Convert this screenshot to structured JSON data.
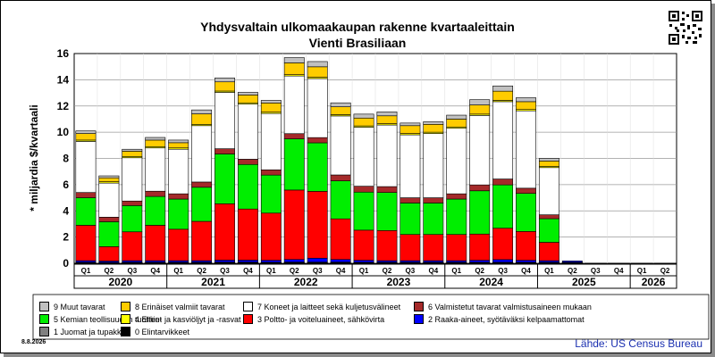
{
  "title": "Yhdysvaltain ulkomaakaupan rakenne kvartaaleittain",
  "subtitle": "Vienti Brasiliaan",
  "ylabel": "* miljardia $/kvartaali",
  "date": "8.8.2026",
  "source": "Lähde: US Census Bureau",
  "qr_icon": "qr-code-icon",
  "chart_data": {
    "type": "bar",
    "stacked": true,
    "ylim": [
      0,
      16
    ],
    "yticks": [
      0,
      2,
      4,
      6,
      8,
      10,
      12,
      14,
      16
    ],
    "grid": true,
    "categories": [
      "Q1",
      "Q2",
      "Q3",
      "Q4",
      "Q1",
      "Q2",
      "Q3",
      "Q4",
      "Q1",
      "Q2",
      "Q3",
      "Q4",
      "Q1",
      "Q2",
      "Q3",
      "Q4",
      "Q1",
      "Q2",
      "Q3",
      "Q4",
      "Q1",
      "Q2",
      "Q3",
      "Q4",
      "Q1",
      "Q2"
    ],
    "years": [
      {
        "label": "2020",
        "start": 0,
        "count": 4
      },
      {
        "label": "2021",
        "start": 4,
        "count": 4
      },
      {
        "label": "2022",
        "start": 8,
        "count": 4
      },
      {
        "label": "2023",
        "start": 12,
        "count": 4
      },
      {
        "label": "2024",
        "start": 16,
        "count": 4
      },
      {
        "label": "2025",
        "start": 20,
        "count": 4
      },
      {
        "label": "2026",
        "start": 24,
        "count": 2
      }
    ],
    "series": [
      {
        "name": "0 Elintarvikkeet",
        "color": "#000000",
        "values": [
          0.05,
          0.04,
          0.05,
          0.05,
          0.05,
          0.05,
          0.06,
          0.06,
          0.05,
          0.06,
          0.06,
          0.06,
          0.05,
          0.05,
          0.05,
          0.05,
          0.05,
          0.05,
          0.05,
          0.05,
          0.05,
          0.05,
          0,
          0,
          0,
          0
        ]
      },
      {
        "name": "1 Juomat ja tupakka",
        "color": "#808080",
        "values": [
          0.03,
          0.03,
          0.03,
          0.03,
          0.03,
          0.03,
          0.03,
          0.03,
          0.03,
          0.03,
          0.03,
          0.03,
          0.03,
          0.03,
          0.03,
          0.03,
          0.03,
          0.03,
          0.03,
          0.03,
          0.03,
          0.03,
          0,
          0,
          0,
          0
        ]
      },
      {
        "name": "2 Raaka-aineet, syötäväksi kelpaamattomat",
        "color": "#0000ff",
        "values": [
          0.12,
          0.1,
          0.12,
          0.12,
          0.12,
          0.12,
          0.15,
          0.15,
          0.15,
          0.2,
          0.3,
          0.2,
          0.15,
          0.12,
          0.12,
          0.12,
          0.12,
          0.15,
          0.2,
          0.15,
          0.12,
          0.1,
          0,
          0,
          0,
          0
        ]
      },
      {
        "name": "3 Poltto- ja voiteluaineet, sähkövirta",
        "color": "#ff0000",
        "values": [
          2.7,
          1.1,
          2.2,
          2.7,
          2.4,
          3.0,
          4.3,
          3.9,
          3.6,
          5.3,
          5.1,
          3.1,
          2.3,
          2.3,
          2.0,
          2.0,
          2.0,
          2.0,
          2.4,
          2.2,
          1.4,
          0,
          0,
          0,
          0,
          0
        ]
      },
      {
        "name": "5 Kemian teollisuuden tuotteet",
        "color": "#00ee00",
        "values": [
          2.1,
          1.9,
          2.0,
          2.2,
          2.3,
          2.6,
          3.8,
          3.4,
          2.9,
          3.9,
          3.7,
          2.9,
          2.9,
          2.9,
          2.4,
          2.4,
          2.7,
          3.3,
          3.3,
          2.9,
          1.8,
          0,
          0,
          0,
          0,
          0
        ]
      },
      {
        "name": "6 Valmistetut tavarat valmistusaineen mukaan",
        "color": "#a52a2a",
        "values": [
          0.4,
          0.35,
          0.35,
          0.4,
          0.4,
          0.4,
          0.4,
          0.4,
          0.4,
          0.4,
          0.4,
          0.45,
          0.45,
          0.45,
          0.4,
          0.4,
          0.4,
          0.45,
          0.45,
          0.4,
          0.3,
          0,
          0,
          0,
          0,
          0
        ]
      },
      {
        "name": "7 Koneet ja laitteet sekä kuljetusvälineet",
        "color": "#ffffff",
        "values": [
          3.9,
          2.6,
          3.3,
          3.3,
          3.4,
          4.3,
          4.3,
          4.2,
          4.3,
          4.4,
          4.5,
          4.5,
          4.5,
          4.7,
          4.8,
          4.9,
          5.0,
          5.3,
          5.9,
          5.9,
          3.6,
          0,
          0,
          0,
          0,
          0
        ]
      },
      {
        "name": "4 Eläin- ja kasviöljyt ja -rasvat",
        "color": "#ffff00",
        "values": [
          0.1,
          0.1,
          0.1,
          0.1,
          0.1,
          0.1,
          0.1,
          0.1,
          0.1,
          0.1,
          0.1,
          0.1,
          0.1,
          0.1,
          0.1,
          0.1,
          0.1,
          0.1,
          0.1,
          0.1,
          0.1,
          0,
          0,
          0,
          0,
          0
        ]
      },
      {
        "name": "8 Erinäiset valmiit tavarat",
        "color": "#ffcc00",
        "values": [
          0.5,
          0.3,
          0.4,
          0.5,
          0.4,
          0.8,
          0.7,
          0.6,
          0.7,
          0.9,
          0.8,
          0.6,
          0.6,
          0.6,
          0.6,
          0.6,
          0.6,
          0.7,
          0.7,
          0.6,
          0.4,
          0,
          0,
          0,
          0,
          0
        ]
      },
      {
        "name": "9 Muut tavarat",
        "color": "#c0c0c0",
        "values": [
          0.2,
          0.15,
          0.15,
          0.2,
          0.2,
          0.3,
          0.3,
          0.2,
          0.2,
          0.4,
          0.4,
          0.3,
          0.3,
          0.3,
          0.2,
          0.2,
          0.3,
          0.4,
          0.4,
          0.3,
          0.2,
          0,
          0,
          0,
          0,
          0
        ]
      }
    ],
    "legend_order": [
      "9 Muut tavarat",
      "8 Erinäiset valmiit tavarat",
      "7 Koneet ja laitteet sekä kuljetusvälineet",
      "6 Valmistetut tavarat valmistusaineen mukaan",
      "5 Kemian teollisuuden tuotteet",
      "4 Eläin- ja kasviöljyt ja -rasvat",
      "3 Poltto- ja voiteluaineet, sähkövirta",
      "2 Raaka-aineet, syötäväksi kelpaamattomat",
      "1 Juomat ja tupakka",
      "0 Elintarvikkeet"
    ]
  }
}
